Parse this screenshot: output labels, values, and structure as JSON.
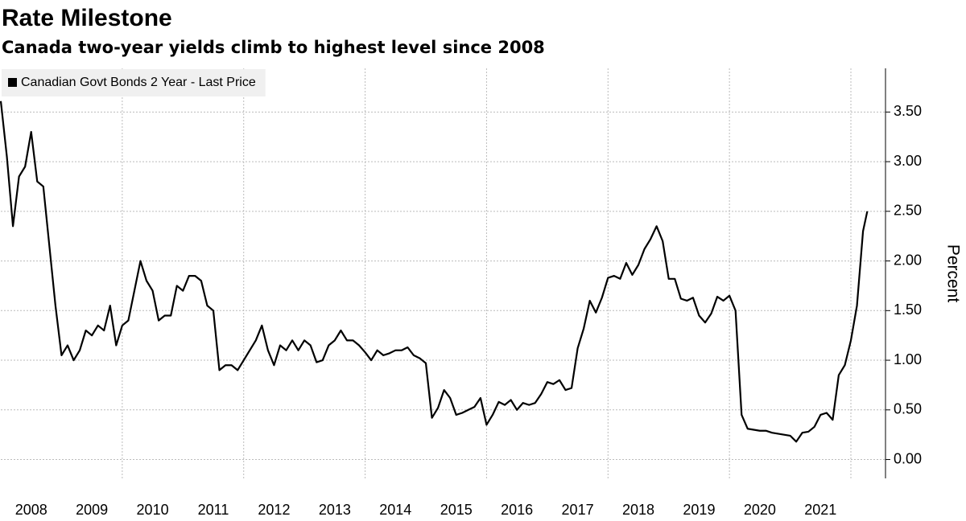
{
  "chart_data": {
    "type": "line",
    "title": "Rate Milestone",
    "subtitle": "Canada two-year yields climb to highest level since 2008",
    "ylabel": "Percent",
    "x": [
      2008,
      2008.1,
      2008.2,
      2008.3,
      2008.4,
      2008.5,
      2008.6,
      2008.7,
      2008.8,
      2008.9,
      2009,
      2009.1,
      2009.2,
      2009.3,
      2009.4,
      2009.5,
      2009.6,
      2009.7,
      2009.8,
      2009.9,
      2010,
      2010.1,
      2010.2,
      2010.3,
      2010.4,
      2010.5,
      2010.6,
      2010.7,
      2010.8,
      2010.9,
      2011,
      2011.1,
      2011.2,
      2011.3,
      2011.4,
      2011.5,
      2011.6,
      2011.7,
      2011.8,
      2011.9,
      2012,
      2012.1,
      2012.2,
      2012.3,
      2012.4,
      2012.5,
      2012.6,
      2012.7,
      2012.8,
      2012.9,
      2013,
      2013.1,
      2013.2,
      2013.3,
      2013.4,
      2013.5,
      2013.6,
      2013.7,
      2013.8,
      2013.9,
      2014,
      2014.1,
      2014.2,
      2014.3,
      2014.4,
      2014.5,
      2014.6,
      2014.7,
      2014.8,
      2014.9,
      2015,
      2015.1,
      2015.2,
      2015.3,
      2015.4,
      2015.5,
      2015.6,
      2015.7,
      2015.8,
      2015.9,
      2016,
      2016.1,
      2016.2,
      2016.3,
      2016.4,
      2016.5,
      2016.6,
      2016.7,
      2016.8,
      2016.9,
      2017,
      2017.1,
      2017.2,
      2017.3,
      2017.4,
      2017.5,
      2017.6,
      2017.7,
      2017.8,
      2017.9,
      2018,
      2018.1,
      2018.2,
      2018.3,
      2018.4,
      2018.5,
      2018.6,
      2018.7,
      2018.8,
      2018.9,
      2019,
      2019.1,
      2019.2,
      2019.3,
      2019.4,
      2019.5,
      2019.6,
      2019.7,
      2019.8,
      2019.9,
      2020,
      2020.1,
      2020.2,
      2020.3,
      2020.4,
      2020.5,
      2020.6,
      2020.7,
      2020.8,
      2020.9,
      2021,
      2021.1,
      2021.2,
      2021.3,
      2021.4,
      2021.5,
      2021.6,
      2021.7,
      2021.8,
      2021.9,
      2022,
      2022.1,
      2022.2,
      2022.27
    ],
    "series": [
      {
        "name": "Canadian Govt Bonds 2 Year - Last Price",
        "color": "#000000",
        "values": [
          3.61,
          3.05,
          2.35,
          2.85,
          2.95,
          3.3,
          2.8,
          2.75,
          2.15,
          1.55,
          1.05,
          1.15,
          1.0,
          1.1,
          1.3,
          1.25,
          1.35,
          1.3,
          1.55,
          1.15,
          1.35,
          1.4,
          1.7,
          2.0,
          1.8,
          1.7,
          1.4,
          1.45,
          1.45,
          1.75,
          1.7,
          1.85,
          1.85,
          1.8,
          1.55,
          1.5,
          0.9,
          0.95,
          0.95,
          0.9,
          1.0,
          1.1,
          1.2,
          1.35,
          1.1,
          0.95,
          1.15,
          1.1,
          1.2,
          1.1,
          1.2,
          1.15,
          0.98,
          1.0,
          1.15,
          1.2,
          1.3,
          1.2,
          1.2,
          1.15,
          1.08,
          1.0,
          1.1,
          1.05,
          1.07,
          1.1,
          1.1,
          1.13,
          1.05,
          1.02,
          0.97,
          0.42,
          0.52,
          0.7,
          0.62,
          0.45,
          0.47,
          0.5,
          0.53,
          0.62,
          0.35,
          0.45,
          0.58,
          0.55,
          0.6,
          0.5,
          0.57,
          0.55,
          0.57,
          0.66,
          0.78,
          0.76,
          0.8,
          0.7,
          0.72,
          1.12,
          1.32,
          1.6,
          1.48,
          1.63,
          1.83,
          1.85,
          1.82,
          1.98,
          1.86,
          1.96,
          2.12,
          2.22,
          2.35,
          2.2,
          1.82,
          1.82,
          1.62,
          1.6,
          1.63,
          1.45,
          1.38,
          1.47,
          1.64,
          1.6,
          1.65,
          1.5,
          0.45,
          0.31,
          0.3,
          0.29,
          0.29,
          0.27,
          0.26,
          0.25,
          0.24,
          0.18,
          0.27,
          0.28,
          0.33,
          0.45,
          0.47,
          0.4,
          0.85,
          0.95,
          1.2,
          1.55,
          2.3,
          2.5
        ]
      }
    ],
    "xlim": [
      2008,
      2022.57
    ],
    "xticks": [
      {
        "value": 2008.5,
        "label": "2008"
      },
      {
        "value": 2009.5,
        "label": "2009"
      },
      {
        "value": 2010.5,
        "label": "2010"
      },
      {
        "value": 2011.5,
        "label": "2011"
      },
      {
        "value": 2012.5,
        "label": "2012"
      },
      {
        "value": 2013.5,
        "label": "2013"
      },
      {
        "value": 2014.5,
        "label": "2014"
      },
      {
        "value": 2015.5,
        "label": "2015"
      },
      {
        "value": 2016.5,
        "label": "2016"
      },
      {
        "value": 2017.5,
        "label": "2017"
      },
      {
        "value": 2018.5,
        "label": "2018"
      },
      {
        "value": 2019.5,
        "label": "2019"
      },
      {
        "value": 2020.5,
        "label": "2020"
      },
      {
        "value": 2021.5,
        "label": "2021"
      }
    ],
    "xgrid": [
      2010,
      2012,
      2014,
      2016,
      2018,
      2020,
      2022
    ],
    "ylim": [
      -0.19,
      3.94
    ],
    "yticks": [
      {
        "value": 0,
        "label": "0.00"
      },
      {
        "value": 0.5,
        "label": "0.50"
      },
      {
        "value": 1,
        "label": "1.00"
      },
      {
        "value": 1.5,
        "label": "1.50"
      },
      {
        "value": 2,
        "label": "2.00"
      },
      {
        "value": 2.5,
        "label": "2.50"
      },
      {
        "value": 3,
        "label": "3.00"
      },
      {
        "value": 3.5,
        "label": "3.50"
      }
    ],
    "y_axis_side": "right",
    "grid": true,
    "legend": "upper left"
  }
}
